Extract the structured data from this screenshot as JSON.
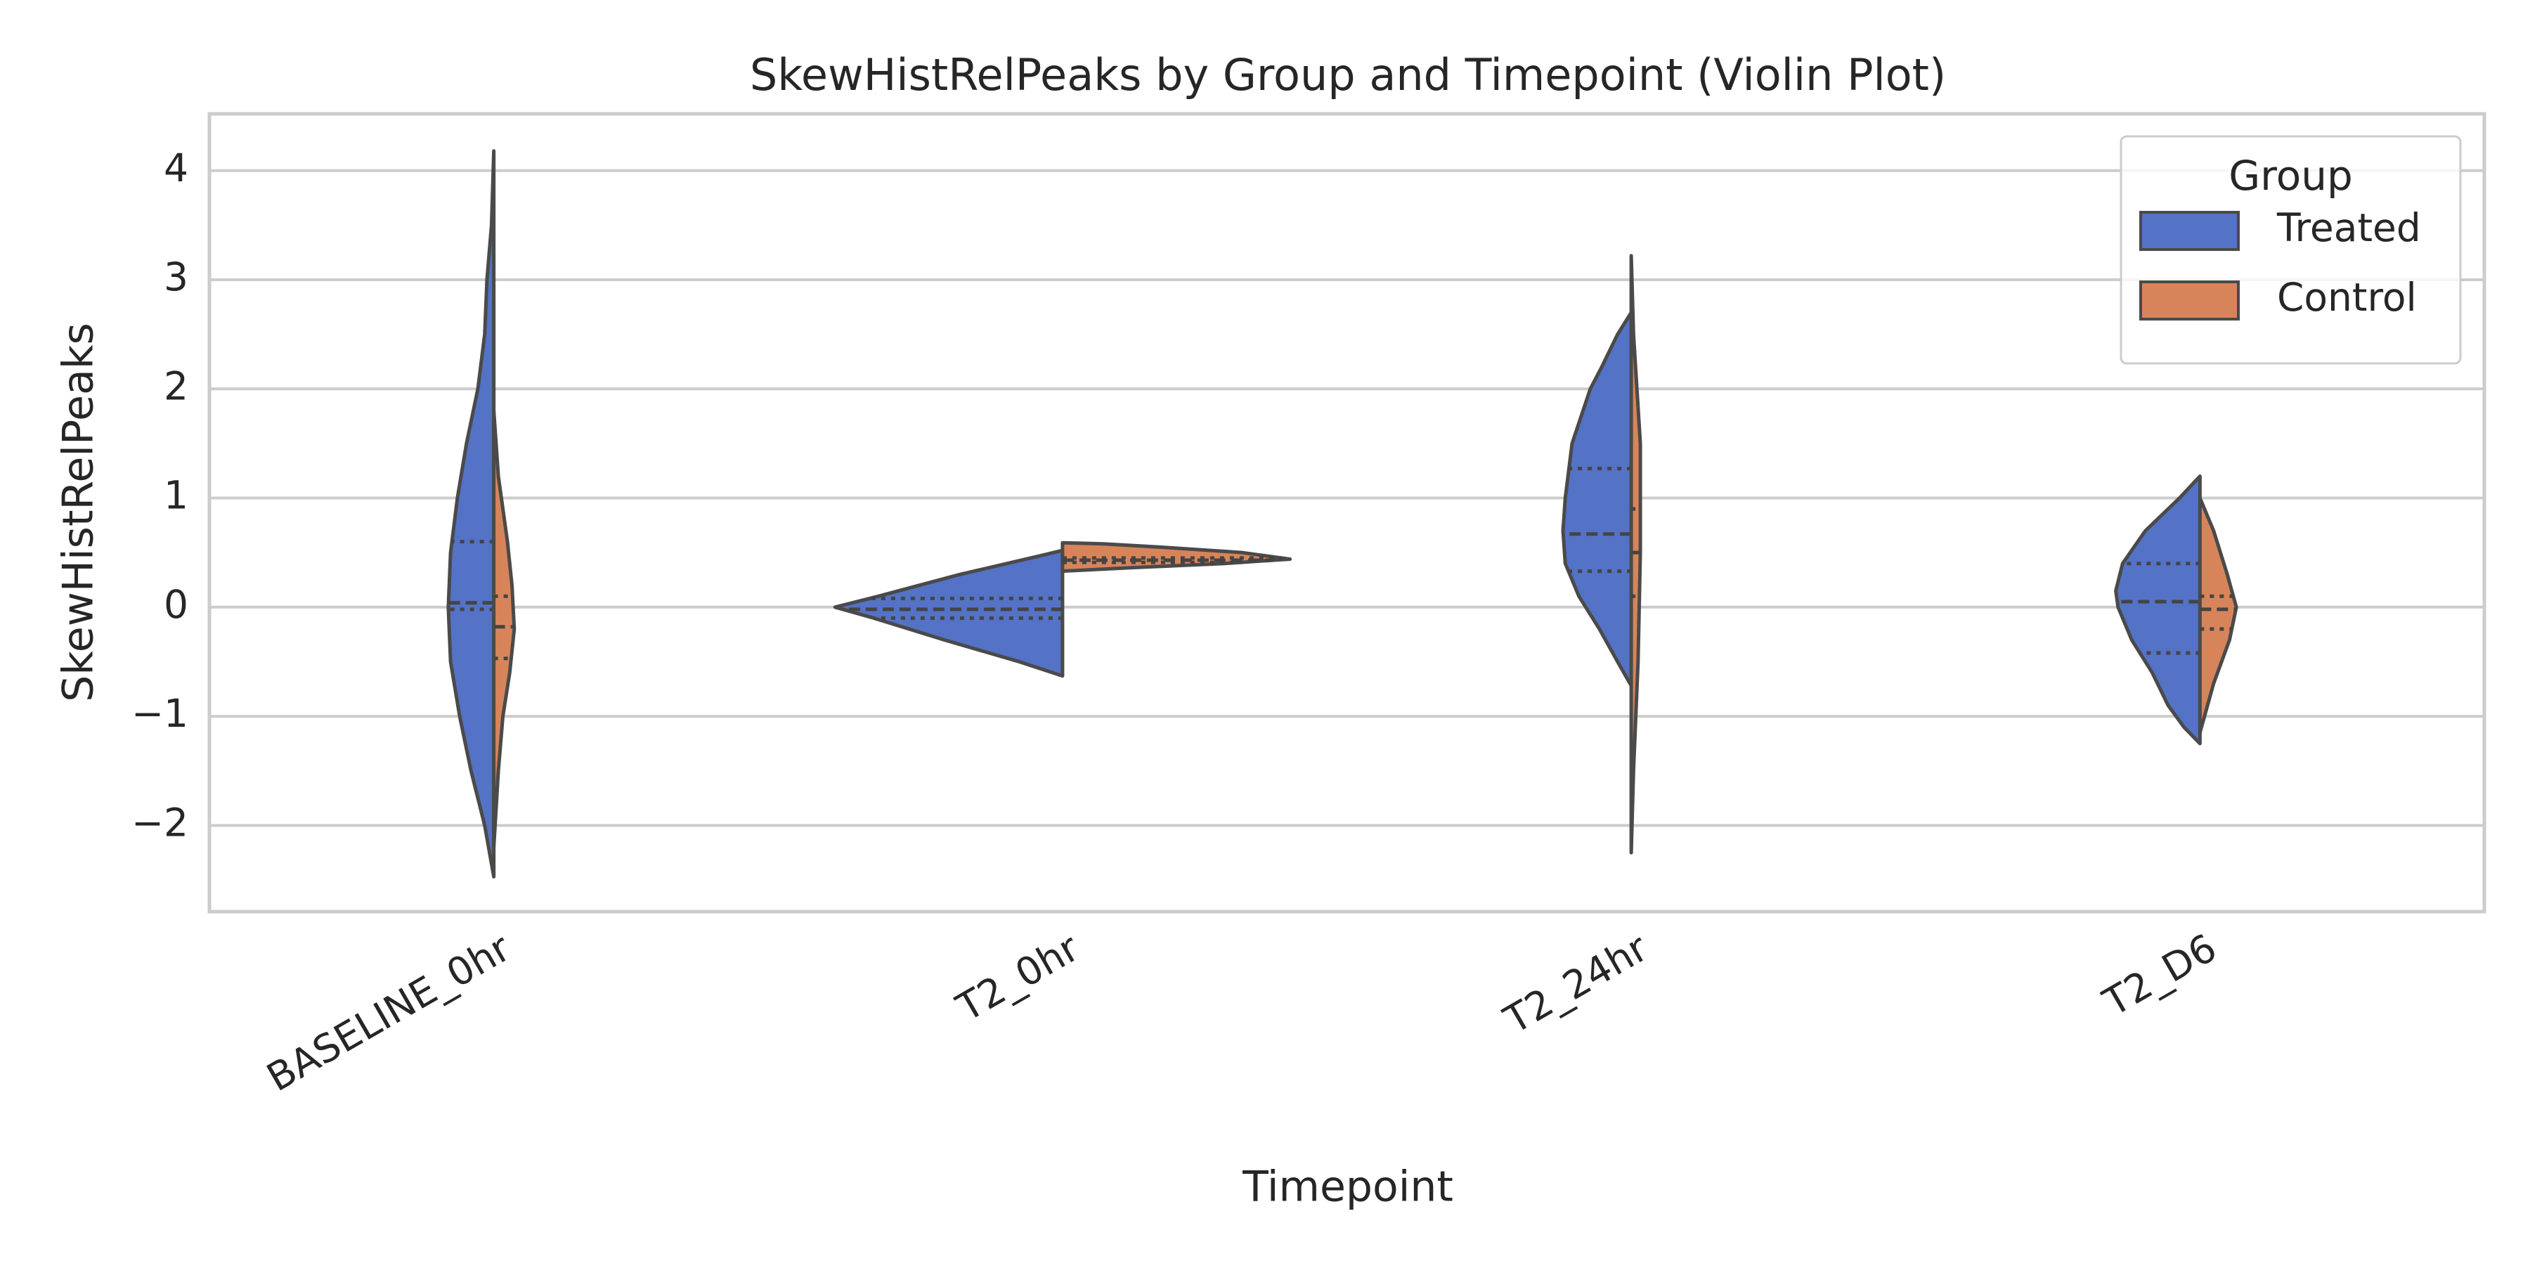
{
  "chart_data": {
    "type": "violin",
    "title": "SkewHistRelPeaks by Group and Timepoint (Violin Plot)",
    "x_label": "Timepoint",
    "y_label": "SkewHistRelPeaks",
    "categories": [
      "BASELINE_0hr",
      "T2_0hr",
      "T2_24hr",
      "T2_D6"
    ],
    "ylim": [
      -2.79,
      4.52
    ],
    "yticks": [
      {
        "value": -2,
        "label": "−2"
      },
      {
        "value": -1,
        "label": "−1"
      },
      0,
      1,
      2,
      3,
      4
    ],
    "grid": true,
    "legend": {
      "title": "Group",
      "position": "upper right"
    },
    "series": [
      {
        "name": "Treated",
        "color": "#5472c6",
        "side": "left",
        "violins": [
          {
            "y": [
              4.18,
              3.5,
              3.0,
              2.5,
              2.0,
              1.5,
              1.0,
              0.5,
              0.0,
              -0.5,
              -1.0,
              -1.5,
              -2.0,
              -2.47
            ],
            "density": [
              0,
              0.01,
              0.03,
              0.04,
              0.07,
              0.12,
              0.16,
              0.19,
              0.2,
              0.19,
              0.15,
              0.1,
              0.04,
              0
            ],
            "quartiles": [
              -0.02,
              0.04,
              0.6
            ]
          },
          {
            "y": [
              0.52,
              0.48,
              0.3,
              0.1,
              0,
              -0.1,
              -0.3,
              -0.5,
              -0.63
            ],
            "density": [
              0,
              0.08,
              0.45,
              0.81,
              1,
              0.83,
              0.52,
              0.19,
              0
            ],
            "quartiles": [
              -0.1,
              -0.02,
              0.08
            ]
          },
          {
            "y": [
              2.7,
              2.5,
              2.2,
              2.0,
              1.5,
              1.0,
              0.7,
              0.4,
              0.1,
              -0.2,
              -0.5,
              -0.72
            ],
            "density": [
              0,
              0.06,
              0.13,
              0.18,
              0.26,
              0.29,
              0.3,
              0.29,
              0.23,
              0.14,
              0.06,
              0
            ],
            "quartiles": [
              0.33,
              0.67,
              1.27
            ]
          },
          {
            "y": [
              1.2,
              1.0,
              0.7,
              0.4,
              0.15,
              0,
              -0.3,
              -0.6,
              -0.9,
              -1.1,
              -1.25
            ],
            "density": [
              0,
              0.09,
              0.24,
              0.34,
              0.37,
              0.36,
              0.3,
              0.21,
              0.14,
              0.07,
              0
            ],
            "quartiles": [
              -0.42,
              0.05,
              0.4
            ]
          }
        ]
      },
      {
        "name": "Control",
        "color": "#d8845a",
        "side": "right",
        "violins": [
          {
            "y": [
              1.8,
              1.2,
              0.6,
              0.2,
              -0.2,
              -0.6,
              -1.0,
              -1.5,
              -2.2
            ],
            "density": [
              0,
              0.02,
              0.06,
              0.08,
              0.09,
              0.07,
              0.04,
              0.02,
              0
            ],
            "quartiles": [
              -0.47,
              -0.18,
              0.1
            ]
          },
          {
            "y": [
              0.59,
              0.58,
              0.55,
              0.5,
              0.44,
              0.4,
              0.36,
              0.33
            ],
            "density": [
              0,
              0.18,
              0.43,
              0.79,
              1,
              0.71,
              0.29,
              0
            ],
            "quartiles": [
              0.41,
              0.43,
              0.45
            ]
          },
          {
            "y": [
              3.22,
              2.5,
              1.5,
              0.5,
              -0.5,
              -1.5,
              -2.25
            ],
            "density": [
              0,
              0.01,
              0.04,
              0.04,
              0.03,
              0.01,
              0
            ],
            "quartiles": [
              0.1,
              0.5,
              0.9
            ]
          },
          {
            "y": [
              1.0,
              0.7,
              0.3,
              0,
              -0.3,
              -0.7,
              -1.0,
              -1.15
            ],
            "density": [
              0,
              0.06,
              0.12,
              0.16,
              0.13,
              0.06,
              0.02,
              0
            ],
            "quartiles": [
              -0.2,
              -0.02,
              0.1
            ]
          }
        ]
      }
    ]
  }
}
